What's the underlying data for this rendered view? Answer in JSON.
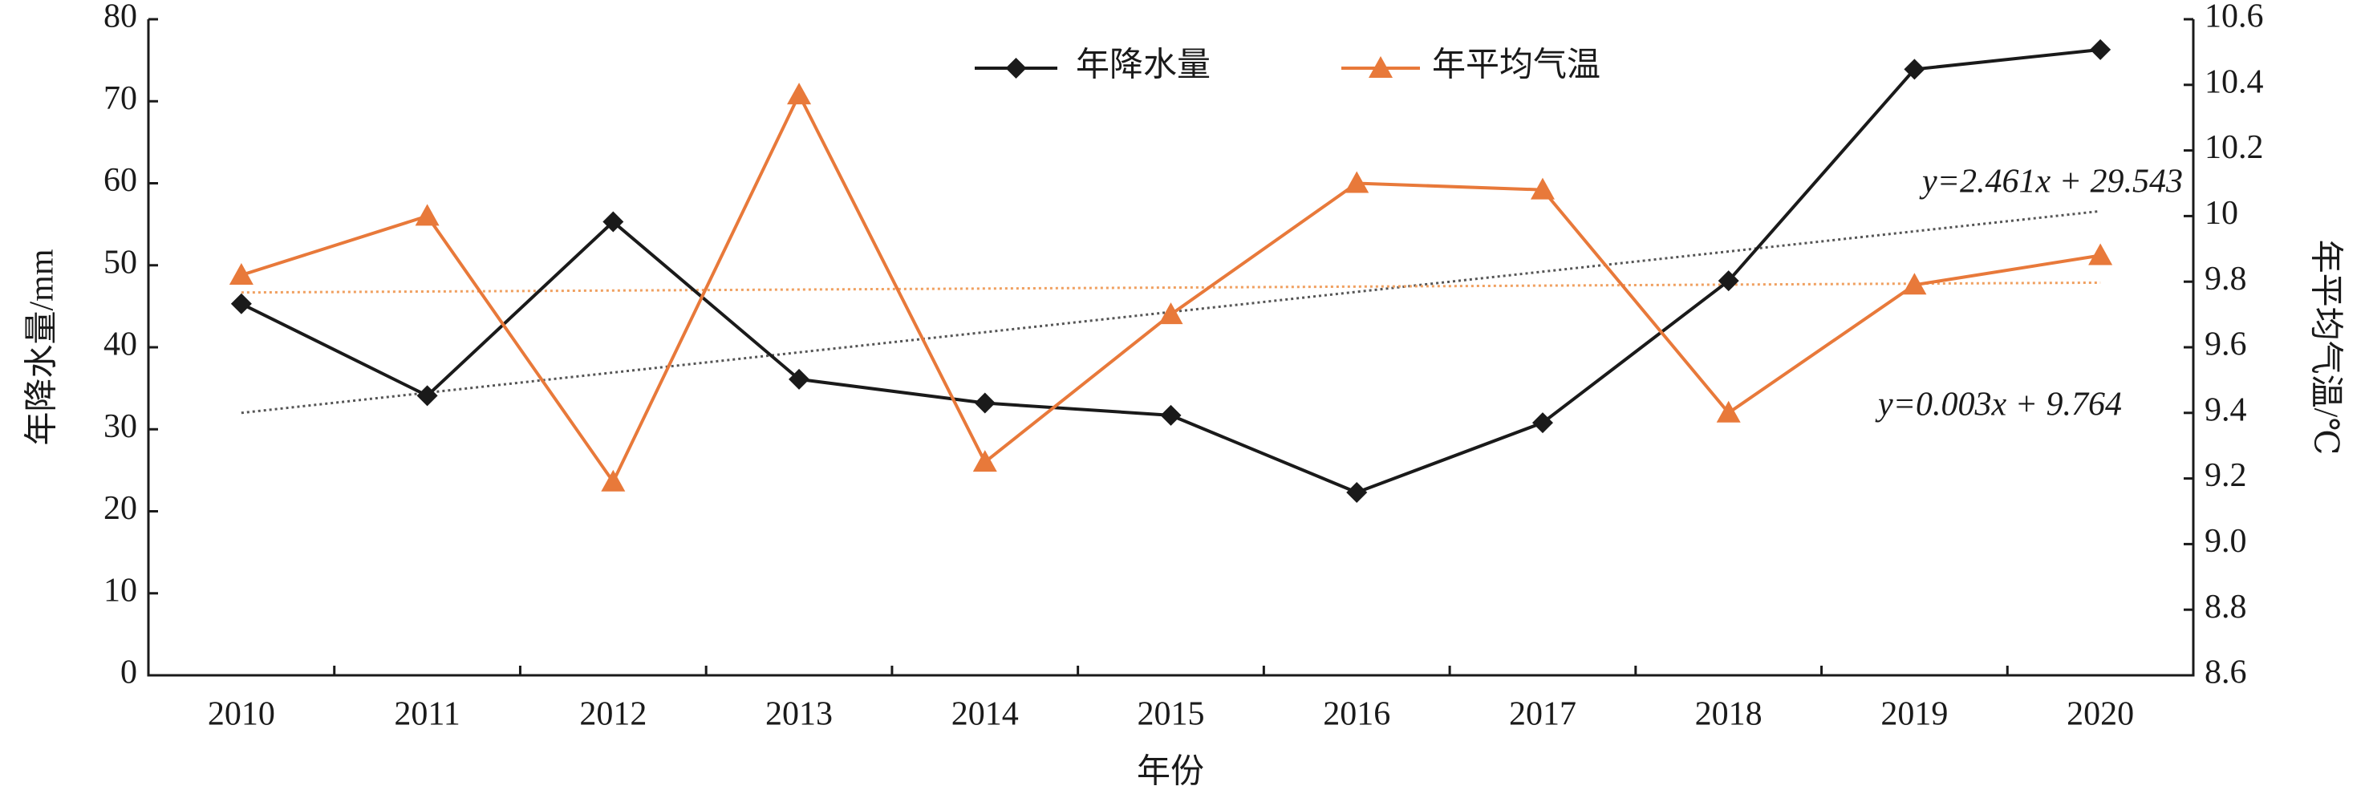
{
  "chart_data": {
    "type": "line",
    "x_label": "年份",
    "y_label": "年降水量/mm",
    "y2_label": "年平均气温/℃",
    "categories": [
      "2010",
      "2011",
      "2012",
      "2013",
      "2014",
      "2015",
      "2016",
      "2017",
      "2018",
      "2019",
      "2020"
    ],
    "series": [
      {
        "name": "年降水量",
        "color": "#1a1a1a",
        "marker": "diamond",
        "axis": "y",
        "values": [
          45.3,
          34.1,
          55.3,
          36.1,
          33.2,
          31.7,
          22.3,
          30.8,
          48.1,
          73.9,
          76.3
        ]
      },
      {
        "name": "年平均气温",
        "color": "#e8793a",
        "marker": "triangle",
        "axis": "y2",
        "values": [
          9.82,
          10.0,
          9.19,
          10.37,
          9.25,
          9.7,
          10.1,
          10.08,
          9.4,
          9.79,
          9.88
        ]
      }
    ],
    "trendlines": [
      {
        "label": "y=2.461x + 29.543",
        "axis": "y",
        "color": "#555555",
        "start": 32.0,
        "end": 56.6
      },
      {
        "label": "y=0.003x + 9.764",
        "axis": "y2",
        "color": "#f0a060",
        "start": 9.767,
        "end": 9.797
      }
    ],
    "ylim": [
      0,
      80
    ],
    "yticks": [
      0,
      10,
      20,
      30,
      40,
      50,
      60,
      70,
      80
    ],
    "y2lim": [
      8.6,
      10.6
    ],
    "y2ticks": [
      {
        "value": 8.6,
        "label": "8.6"
      },
      {
        "value": 8.8,
        "label": "8.8"
      },
      {
        "value": 9,
        "label": "9.0"
      },
      {
        "value": 9.2,
        "label": "9.2"
      },
      {
        "value": 9.4,
        "label": "9.4"
      },
      {
        "value": 9.6,
        "label": "9.6"
      },
      {
        "value": 9.8,
        "label": "9.8"
      },
      10,
      10.2,
      10.4,
      10.6
    ],
    "legend": "top"
  }
}
